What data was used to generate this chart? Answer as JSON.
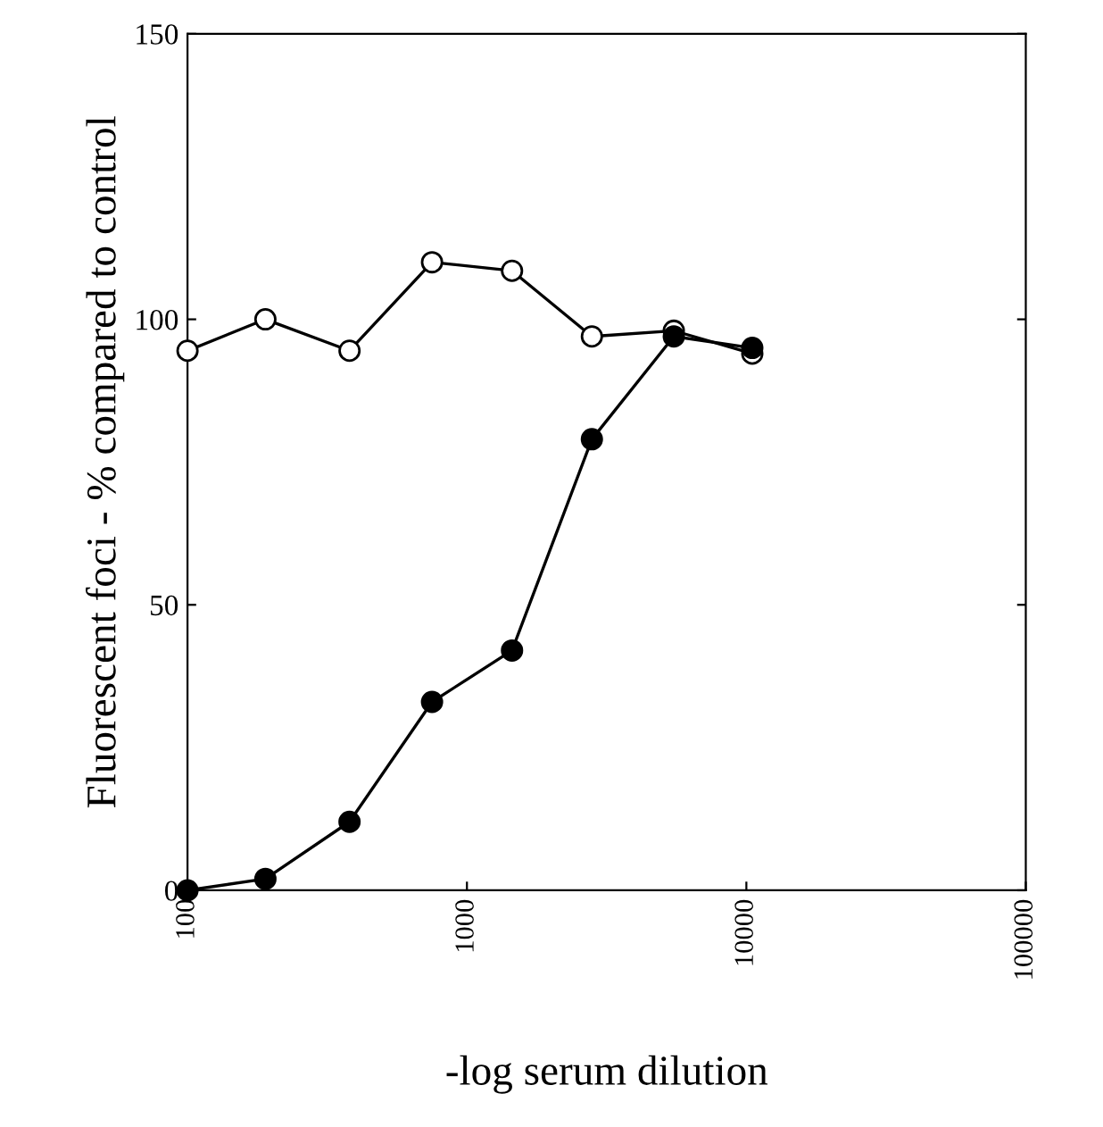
{
  "chart_data": {
    "type": "line",
    "xlabel": "-log serum dilution",
    "ylabel": "Fluorescent foci - % compared to control",
    "log": "x",
    "xlim": [
      100,
      100000
    ],
    "xticks": [
      100,
      1000,
      10000,
      100000
    ],
    "ylim": [
      0,
      150
    ],
    "yticks": [
      0,
      50,
      100,
      150
    ],
    "marker": "circle",
    "grid": false,
    "legend": false,
    "series": [
      {
        "color": "#ffffff",
        "x": [
          100,
          190,
          380,
          750,
          1450,
          2800,
          5500,
          10500
        ],
        "values": [
          94.5,
          100,
          94.5,
          110,
          108.5,
          97,
          98,
          94
        ]
      },
      {
        "color": "#000000",
        "x": [
          100,
          190,
          380,
          750,
          1450,
          2800,
          5500,
          10500
        ],
        "values": [
          0,
          2,
          12,
          33,
          42,
          79,
          97,
          95
        ]
      }
    ]
  }
}
